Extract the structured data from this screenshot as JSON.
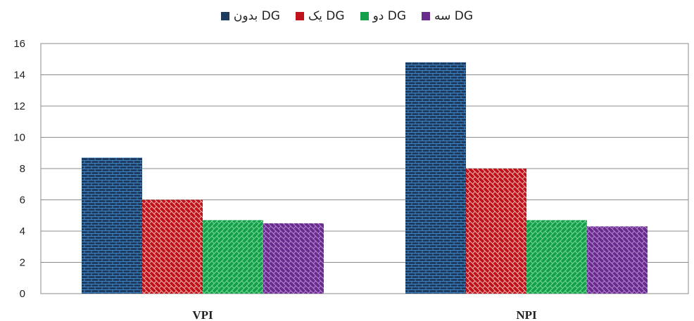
{
  "chart_data": {
    "type": "bar",
    "categories": [
      "VPI",
      "NPI"
    ],
    "series": [
      {
        "name": "بدون DG",
        "values": [
          8.7,
          14.8
        ],
        "color": "#1f3a5f",
        "pattern": "brick-blue"
      },
      {
        "name": "یک DG",
        "values": [
          6.0,
          8.0
        ],
        "color": "#c0121a",
        "pattern": "brick-red"
      },
      {
        "name": "دو DG",
        "values": [
          4.7,
          4.7
        ],
        "color": "#14a04a",
        "pattern": "brick-green"
      },
      {
        "name": "سه DG",
        "values": [
          4.5,
          4.3
        ],
        "color": "#6a2c8c",
        "pattern": "brick-purple"
      }
    ],
    "ylim": [
      0,
      16
    ],
    "yticks": [
      "0",
      "2",
      "4",
      "6",
      "8",
      "10",
      "12",
      "14",
      "16"
    ],
    "grid": true,
    "legend_position": "top"
  }
}
